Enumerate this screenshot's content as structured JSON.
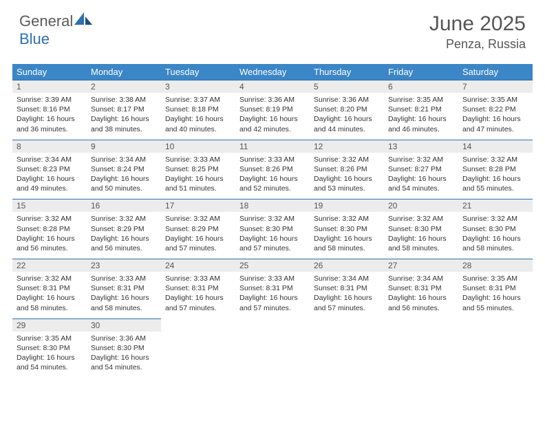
{
  "brand": {
    "part1": "General",
    "part2": "Blue"
  },
  "colors": {
    "header_bg": "#3b86c6",
    "accent": "#2f6fae",
    "daynum_bg": "#ececec",
    "text": "#333333",
    "title": "#555555"
  },
  "title": "June 2025",
  "subtitle": "Penza, Russia",
  "days_of_week": [
    "Sunday",
    "Monday",
    "Tuesday",
    "Wednesday",
    "Thursday",
    "Friday",
    "Saturday"
  ],
  "days": [
    {
      "n": "1",
      "sr": "3:39 AM",
      "ss": "8:16 PM",
      "dl": "16 hours and 36 minutes."
    },
    {
      "n": "2",
      "sr": "3:38 AM",
      "ss": "8:17 PM",
      "dl": "16 hours and 38 minutes."
    },
    {
      "n": "3",
      "sr": "3:37 AM",
      "ss": "8:18 PM",
      "dl": "16 hours and 40 minutes."
    },
    {
      "n": "4",
      "sr": "3:36 AM",
      "ss": "8:19 PM",
      "dl": "16 hours and 42 minutes."
    },
    {
      "n": "5",
      "sr": "3:36 AM",
      "ss": "8:20 PM",
      "dl": "16 hours and 44 minutes."
    },
    {
      "n": "6",
      "sr": "3:35 AM",
      "ss": "8:21 PM",
      "dl": "16 hours and 46 minutes."
    },
    {
      "n": "7",
      "sr": "3:35 AM",
      "ss": "8:22 PM",
      "dl": "16 hours and 47 minutes."
    },
    {
      "n": "8",
      "sr": "3:34 AM",
      "ss": "8:23 PM",
      "dl": "16 hours and 49 minutes."
    },
    {
      "n": "9",
      "sr": "3:34 AM",
      "ss": "8:24 PM",
      "dl": "16 hours and 50 minutes."
    },
    {
      "n": "10",
      "sr": "3:33 AM",
      "ss": "8:25 PM",
      "dl": "16 hours and 51 minutes."
    },
    {
      "n": "11",
      "sr": "3:33 AM",
      "ss": "8:26 PM",
      "dl": "16 hours and 52 minutes."
    },
    {
      "n": "12",
      "sr": "3:32 AM",
      "ss": "8:26 PM",
      "dl": "16 hours and 53 minutes."
    },
    {
      "n": "13",
      "sr": "3:32 AM",
      "ss": "8:27 PM",
      "dl": "16 hours and 54 minutes."
    },
    {
      "n": "14",
      "sr": "3:32 AM",
      "ss": "8:28 PM",
      "dl": "16 hours and 55 minutes."
    },
    {
      "n": "15",
      "sr": "3:32 AM",
      "ss": "8:28 PM",
      "dl": "16 hours and 56 minutes."
    },
    {
      "n": "16",
      "sr": "3:32 AM",
      "ss": "8:29 PM",
      "dl": "16 hours and 56 minutes."
    },
    {
      "n": "17",
      "sr": "3:32 AM",
      "ss": "8:29 PM",
      "dl": "16 hours and 57 minutes."
    },
    {
      "n": "18",
      "sr": "3:32 AM",
      "ss": "8:30 PM",
      "dl": "16 hours and 57 minutes."
    },
    {
      "n": "19",
      "sr": "3:32 AM",
      "ss": "8:30 PM",
      "dl": "16 hours and 58 minutes."
    },
    {
      "n": "20",
      "sr": "3:32 AM",
      "ss": "8:30 PM",
      "dl": "16 hours and 58 minutes."
    },
    {
      "n": "21",
      "sr": "3:32 AM",
      "ss": "8:30 PM",
      "dl": "16 hours and 58 minutes."
    },
    {
      "n": "22",
      "sr": "3:32 AM",
      "ss": "8:31 PM",
      "dl": "16 hours and 58 minutes."
    },
    {
      "n": "23",
      "sr": "3:33 AM",
      "ss": "8:31 PM",
      "dl": "16 hours and 58 minutes."
    },
    {
      "n": "24",
      "sr": "3:33 AM",
      "ss": "8:31 PM",
      "dl": "16 hours and 57 minutes."
    },
    {
      "n": "25",
      "sr": "3:33 AM",
      "ss": "8:31 PM",
      "dl": "16 hours and 57 minutes."
    },
    {
      "n": "26",
      "sr": "3:34 AM",
      "ss": "8:31 PM",
      "dl": "16 hours and 57 minutes."
    },
    {
      "n": "27",
      "sr": "3:34 AM",
      "ss": "8:31 PM",
      "dl": "16 hours and 56 minutes."
    },
    {
      "n": "28",
      "sr": "3:35 AM",
      "ss": "8:31 PM",
      "dl": "16 hours and 55 minutes."
    },
    {
      "n": "29",
      "sr": "3:35 AM",
      "ss": "8:30 PM",
      "dl": "16 hours and 54 minutes."
    },
    {
      "n": "30",
      "sr": "3:36 AM",
      "ss": "8:30 PM",
      "dl": "16 hours and 54 minutes."
    }
  ],
  "labels": {
    "sunrise": "Sunrise: ",
    "sunset": "Sunset: ",
    "daylight": "Daylight: "
  },
  "layout": {
    "weeks": 5,
    "cols": 7,
    "start_offset": 0,
    "total_days": 30
  }
}
